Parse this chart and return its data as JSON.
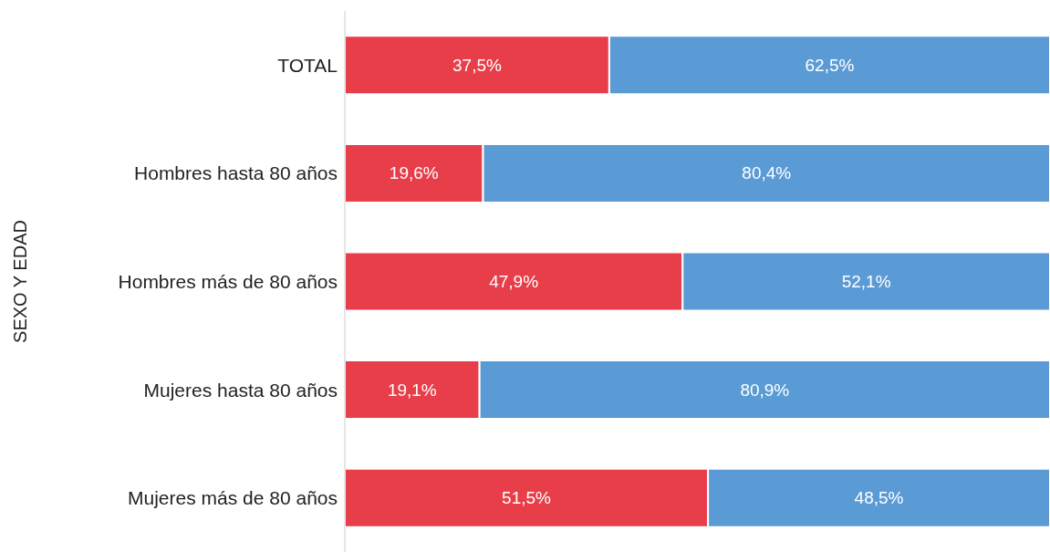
{
  "chart_data": {
    "type": "bar",
    "orientation": "horizontal",
    "stacked": true,
    "ylabel": "SEXO Y EDAD",
    "categories": [
      "TOTAL",
      "Hombres hasta 80 años",
      "Hombres más de 80 años",
      "Mujeres hasta 80 años",
      "Mujeres más de 80 años"
    ],
    "series": [
      {
        "color": "#e83e4a",
        "values": [
          37.5,
          19.6,
          47.9,
          19.1,
          51.5
        ],
        "value_labels": [
          "37,5%",
          "19,6%",
          "47,9%",
          "19,1%",
          "51,5%"
        ]
      },
      {
        "color": "#5b9bd5",
        "values": [
          62.5,
          80.4,
          52.1,
          80.9,
          48.5
        ],
        "value_labels": [
          "62,5%",
          "80,4%",
          "52,1%",
          "80,9%",
          "48,5%"
        ]
      }
    ],
    "grid": false,
    "legend": false
  }
}
